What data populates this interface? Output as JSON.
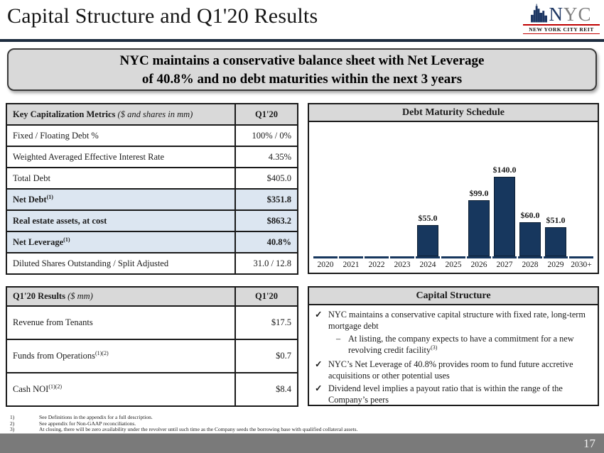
{
  "page": {
    "title": "Capital Structure and Q1'20 Results",
    "page_number": "17"
  },
  "logo": {
    "name_primary": "N",
    "name_secondary": "YC",
    "subtitle": "NEW YORK CITY REIT"
  },
  "banner": {
    "line1": "NYC maintains a conservative balance sheet with Net Leverage",
    "line2": "of 40.8% and no debt maturities within the next 3 years"
  },
  "cap_table": {
    "header_label": "Key Capitalization Metrics",
    "header_note": " ($ and shares in mm)",
    "header_value": "Q1'20",
    "rows": [
      {
        "label": "Fixed / Floating Debt %",
        "sup": "",
        "value": "100% / 0%",
        "highlight": false
      },
      {
        "label": "Weighted Averaged Effective Interest Rate",
        "sup": "",
        "value": "4.35%",
        "highlight": false
      },
      {
        "label": "Total Debt",
        "sup": "",
        "value": "$405.0",
        "highlight": false
      },
      {
        "label": "Net Debt",
        "sup": "(1)",
        "value": "$351.8",
        "highlight": true
      },
      {
        "label": "Real estate assets, at cost",
        "sup": "",
        "value": "$863.2",
        "highlight": true
      },
      {
        "label": "Net Leverage",
        "sup": "(1)",
        "value": "40.8%",
        "highlight": true
      },
      {
        "label": "Diluted Shares Outstanding / Split Adjusted",
        "sup": "",
        "value": "31.0 / 12.8",
        "highlight": false
      }
    ]
  },
  "results_table": {
    "header_label": "Q1'20 Results",
    "header_note": " ($ mm)",
    "header_value": "Q1'20",
    "rows": [
      {
        "label": "Revenue from Tenants",
        "sup": "",
        "value": "$17.5",
        "highlight": false
      },
      {
        "label": "Funds from Operations",
        "sup": "(1)(2)",
        "value": "$0.7",
        "highlight": false
      },
      {
        "label": "Cash NOI",
        "sup": "(1)(2)",
        "value": "$8.4",
        "highlight": false
      }
    ]
  },
  "chart_data": {
    "type": "bar",
    "title": "Debt Maturity Schedule",
    "categories": [
      "2020",
      "2021",
      "2022",
      "2023",
      "2024",
      "2025",
      "2026",
      "2027",
      "2028",
      "2029",
      "2030+"
    ],
    "values": [
      0,
      0,
      0,
      0,
      55,
      0,
      99,
      140,
      60,
      51,
      0
    ],
    "bar_labels": [
      "",
      "",
      "",
      "",
      "$55.0",
      "",
      "$99.0",
      "$140.0",
      "$60.0",
      "$51.0",
      ""
    ],
    "ylim": [
      0,
      150
    ],
    "grid": false,
    "legend": "none",
    "bar_color": "#17375e"
  },
  "capital_structure": {
    "title": "Capital Structure",
    "check_glyph": "✓",
    "dash_glyph": "–",
    "bullets": [
      {
        "text": "NYC maintains a conservative capital structure with fixed rate, long-term mortgage debt",
        "sub": {
          "text": "At listing, the company expects to have a commitment for a new revolving credit facility",
          "sup": "(3)"
        }
      },
      {
        "text": "NYC’s Net Leverage of 40.8% provides room to fund future accretive acquisitions or other potential uses"
      },
      {
        "text": "Dividend level implies a payout ratio that is within the range of the Company’s peers"
      }
    ]
  },
  "footnotes": [
    "See Definitions in the appendix for a full description.",
    "See appendix for Non-GAAP reconciliations.",
    "At closing, there will be zero availability under the revolver until such time as the Company seeds the borrowing base with qualified collateral assets."
  ],
  "colors": {
    "navy": "#1f3864",
    "bar_navy": "#17375e",
    "header_gray": "#d9d9d9",
    "highlight_blue": "#dce6f1",
    "footer_gray": "#7a7a7a",
    "logo_red": "#c00000",
    "rule_navy": "#1d2c3f"
  }
}
